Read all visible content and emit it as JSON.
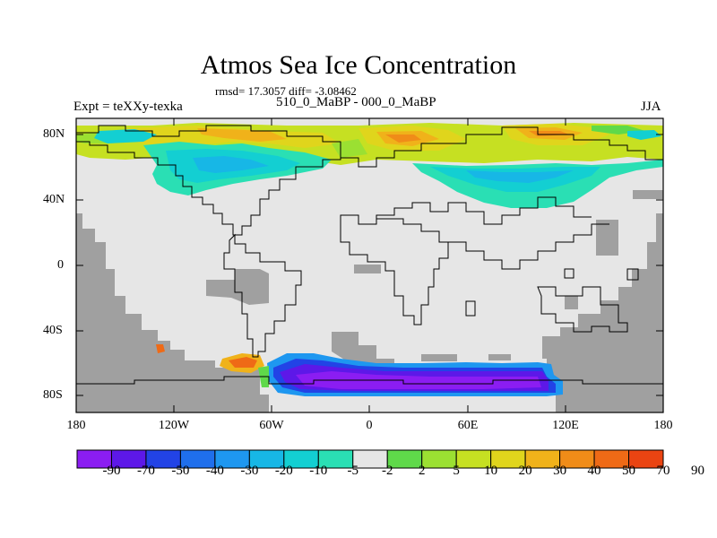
{
  "title": "Atmos Sea Ice Concentration",
  "stats": "rmsd= 17.3057 diff= -3.08462",
  "experiment": "Expt = teXXy-texka",
  "difference_label": "510_0_MaBP - 000_0_MaBP",
  "season": "JJA",
  "lat_ticks": [
    "80N",
    "40N",
    "0",
    "40S",
    "80S"
  ],
  "lon_ticks": [
    "180",
    "120W",
    "60W",
    "0",
    "60E",
    "120E",
    "180"
  ],
  "colorbar": {
    "labels": [
      "-90",
      "-70",
      "-50",
      "-40",
      "-30",
      "-20",
      "-10",
      "-5",
      "-2",
      "2",
      "5",
      "10",
      "20",
      "30",
      "40",
      "50",
      "70",
      "90"
    ],
    "colors": [
      "#8b1df2",
      "#5d18e8",
      "#2243e6",
      "#1f6fec",
      "#1e97f0",
      "#17b7e6",
      "#13cfd2",
      "#2adfb4",
      "#e6e6e6",
      "#5fd94a",
      "#9be032",
      "#c6e022",
      "#e0d51c",
      "#f0b21a",
      "#f08c18",
      "#ef6a16",
      "#ea4412"
    ]
  },
  "colors": {
    "land": "#e6e6e6",
    "missing": "#a0a0a0",
    "coast": "#000000"
  }
}
